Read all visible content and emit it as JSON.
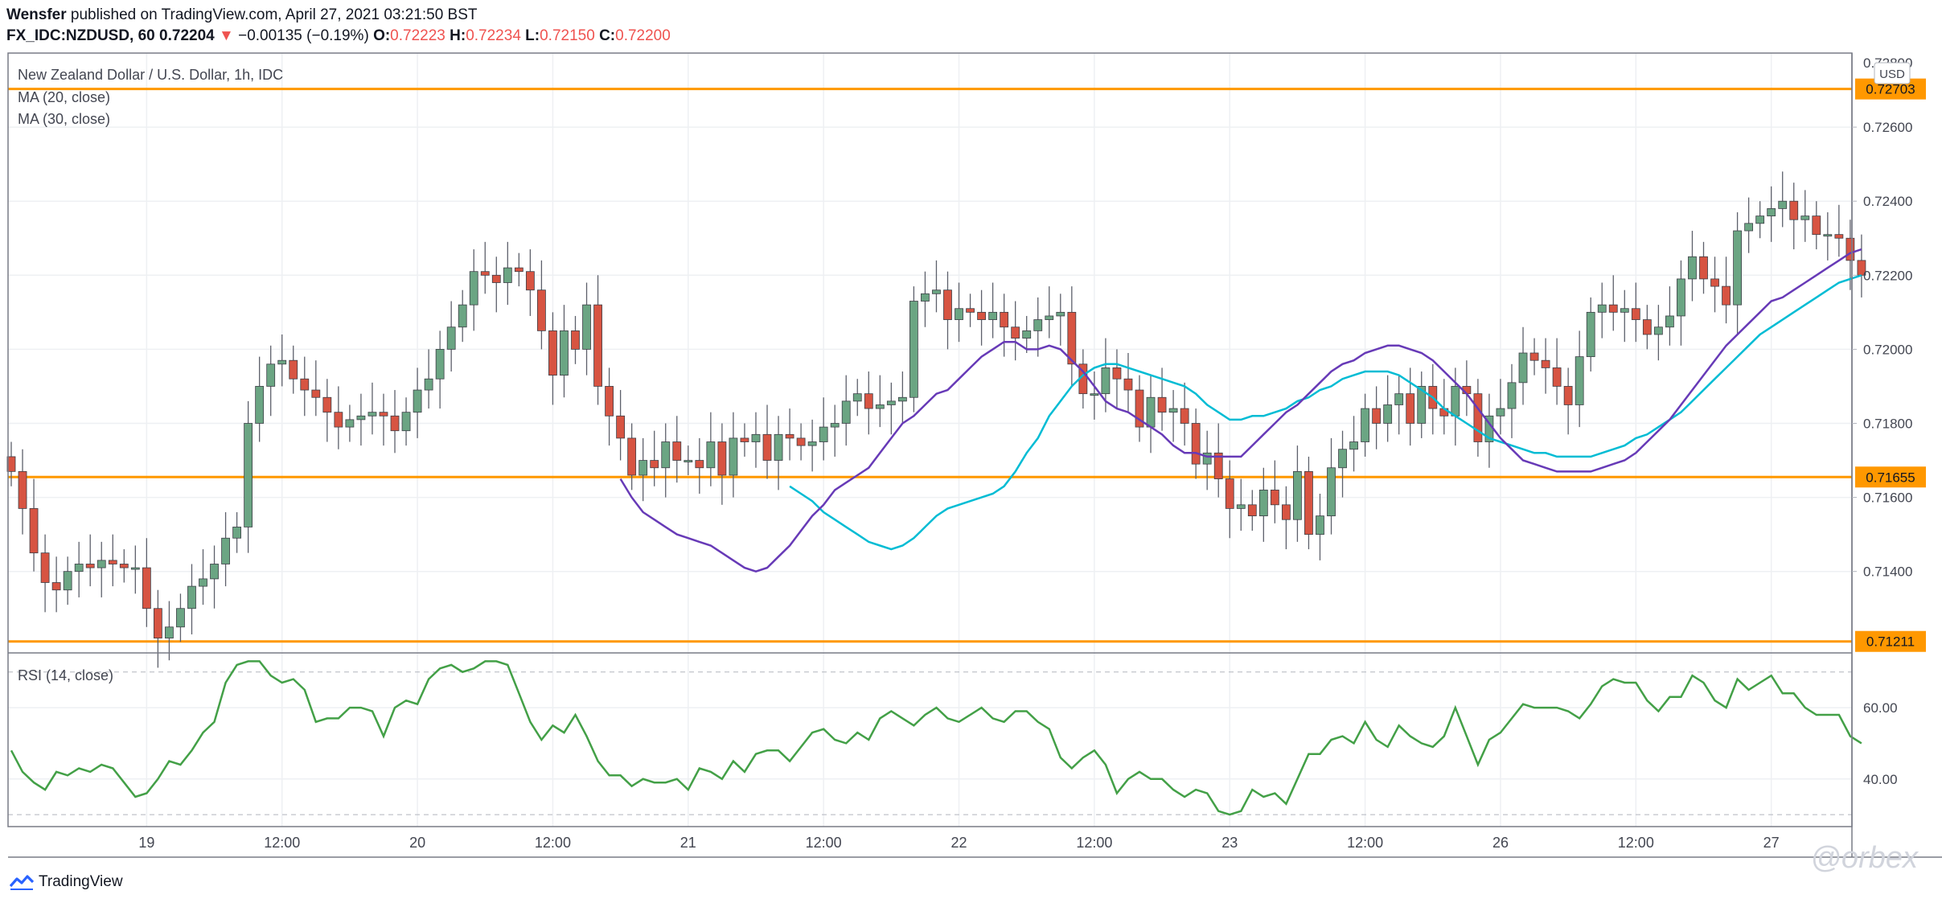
{
  "header": {
    "author": "Wensfer",
    "published_text": "published on TradingView.com, April 27, 2021 03:21:50 BST",
    "symbol": "FX_IDC:NZDUSD, 60",
    "last": "0.72204",
    "change_arrow": "▼",
    "change": "−0.00135 (−0.19%)",
    "o_label": "O:",
    "o_value": "0.72223",
    "h_label": "H:",
    "h_value": "0.72234",
    "l_label": "L:",
    "l_value": "0.72150",
    "c_label": "C:",
    "c_value": "0.72200"
  },
  "branding": {
    "label": "TradingView",
    "watermark": "@orbex"
  },
  "colors": {
    "up": "#6ba583",
    "down": "#d75442",
    "ma20": "#673ab7",
    "ma30": "#00bcd4",
    "level": "#ff9800",
    "rsi": "#43a047",
    "grid": "#eef0f3",
    "axis_text": "#434651"
  },
  "chart_data": [
    {
      "type": "candlestick",
      "title": "New Zealand Dollar / U.S. Dollar, 1h, IDC",
      "currency": "USD",
      "indicators": [
        "MA (20, close)",
        "MA (30, close)"
      ],
      "ylim": [
        0.7118,
        0.728
      ],
      "yticks": [
        0.714,
        0.716,
        0.718,
        0.72,
        0.722,
        0.724,
        0.726
      ],
      "ytick_labels": [
        "0.71400",
        "0.71600",
        "0.71800",
        "0.72000",
        "0.72200",
        "0.72400",
        "0.72600"
      ],
      "top_tick_label": "0.72800",
      "levels": [
        {
          "value": 0.72703,
          "label": "0.72703"
        },
        {
          "value": 0.71655,
          "label": "0.71655"
        },
        {
          "value": 0.71211,
          "label": "0.71211"
        }
      ],
      "x_labels": [
        {
          "index": 12,
          "label": "19"
        },
        {
          "index": 24,
          "label": "12:00"
        },
        {
          "index": 36,
          "label": "20"
        },
        {
          "index": 48,
          "label": "12:00"
        },
        {
          "index": 60,
          "label": "21"
        },
        {
          "index": 72,
          "label": "12:00"
        },
        {
          "index": 84,
          "label": "22"
        },
        {
          "index": 96,
          "label": "12:00"
        },
        {
          "index": 108,
          "label": "23"
        },
        {
          "index": 120,
          "label": "12:00"
        },
        {
          "index": 132,
          "label": "26"
        },
        {
          "index": 144,
          "label": "12:00"
        },
        {
          "index": 156,
          "label": "27"
        }
      ],
      "close": [
        0.7167,
        0.7157,
        0.7145,
        0.7137,
        0.7135,
        0.714,
        0.7142,
        0.7141,
        0.7143,
        0.7142,
        0.7141,
        0.7141,
        0.713,
        0.7122,
        0.7125,
        0.713,
        0.7136,
        0.7138,
        0.7142,
        0.7149,
        0.7152,
        0.718,
        0.719,
        0.7196,
        0.7197,
        0.7192,
        0.7189,
        0.7187,
        0.7183,
        0.7179,
        0.7181,
        0.7182,
        0.7183,
        0.7182,
        0.7178,
        0.7183,
        0.7189,
        0.7192,
        0.72,
        0.7206,
        0.7212,
        0.7221,
        0.722,
        0.7218,
        0.7222,
        0.7221,
        0.7216,
        0.7205,
        0.7193,
        0.7205,
        0.72,
        0.7212,
        0.719,
        0.7182,
        0.7176,
        0.7166,
        0.717,
        0.7168,
        0.7175,
        0.717,
        0.717,
        0.7168,
        0.7175,
        0.7166,
        0.7176,
        0.7175,
        0.7177,
        0.717,
        0.7177,
        0.7176,
        0.7174,
        0.7175,
        0.7179,
        0.718,
        0.7186,
        0.7188,
        0.7184,
        0.7185,
        0.7186,
        0.7187,
        0.7213,
        0.7215,
        0.7216,
        0.7208,
        0.7211,
        0.721,
        0.7208,
        0.721,
        0.7206,
        0.7203,
        0.7205,
        0.7208,
        0.7209,
        0.721,
        0.7196,
        0.7188,
        0.7188,
        0.7195,
        0.7192,
        0.7189,
        0.7179,
        0.7187,
        0.7183,
        0.7184,
        0.718,
        0.7169,
        0.7172,
        0.7165,
        0.7157,
        0.7158,
        0.7155,
        0.7162,
        0.7158,
        0.7154,
        0.7167,
        0.715,
        0.7155,
        0.7168,
        0.7173,
        0.7175,
        0.7184,
        0.718,
        0.7185,
        0.7188,
        0.718,
        0.719,
        0.7184,
        0.7182,
        0.719,
        0.7188,
        0.7175,
        0.7182,
        0.7184,
        0.7191,
        0.7199,
        0.7197,
        0.7195,
        0.719,
        0.7185,
        0.7198,
        0.721,
        0.7212,
        0.721,
        0.7211,
        0.7208,
        0.7204,
        0.7206,
        0.7209,
        0.7219,
        0.7225,
        0.7219,
        0.7217,
        0.7212,
        0.7232,
        0.7234,
        0.7236,
        0.7238,
        0.724,
        0.7235,
        0.7236,
        0.7231,
        0.7231,
        0.723,
        0.7224,
        0.722
      ],
      "ma20": [
        0.7165,
        0.716,
        0.7156,
        0.7154,
        0.7152,
        0.715,
        0.7149,
        0.7148,
        0.7147,
        0.7145,
        0.7143,
        0.7141,
        0.714,
        0.7141,
        0.7144,
        0.7147,
        0.7151,
        0.7155,
        0.7158,
        0.7162,
        0.7164,
        0.7166,
        0.7168,
        0.7172,
        0.7176,
        0.718,
        0.7182,
        0.7185,
        0.7188,
        0.7189,
        0.7192,
        0.7195,
        0.7198,
        0.72,
        0.7202,
        0.7202,
        0.72,
        0.72,
        0.7201,
        0.72,
        0.7197,
        0.7194,
        0.719,
        0.7186,
        0.7184,
        0.7183,
        0.7181,
        0.7179,
        0.7177,
        0.7174,
        0.7172,
        0.7172,
        0.7171,
        0.7171,
        0.7171,
        0.7171,
        0.7174,
        0.7177,
        0.718,
        0.7183,
        0.7185,
        0.7188,
        0.7191,
        0.7194,
        0.7196,
        0.7197,
        0.7199,
        0.72,
        0.7201,
        0.7201,
        0.72,
        0.7199,
        0.7197,
        0.7194,
        0.7191,
        0.7188,
        0.7184,
        0.718,
        0.7176,
        0.7173,
        0.717,
        0.7169,
        0.7168,
        0.7167,
        0.7167,
        0.7167,
        0.7167,
        0.7168,
        0.7169,
        0.717,
        0.7172,
        0.7175,
        0.7178,
        0.7181,
        0.7185,
        0.7189,
        0.7193,
        0.7197,
        0.7201,
        0.7204,
        0.7207,
        0.721,
        0.7213,
        0.7214,
        0.7216,
        0.7218,
        0.722,
        0.7222,
        0.7224,
        0.7226,
        0.7227
      ],
      "ma30": [
        0.7163,
        0.7161,
        0.7159,
        0.7156,
        0.7154,
        0.7152,
        0.715,
        0.7148,
        0.7147,
        0.7146,
        0.7147,
        0.7149,
        0.7152,
        0.7155,
        0.7157,
        0.7158,
        0.7159,
        0.716,
        0.7161,
        0.7163,
        0.7167,
        0.7172,
        0.7176,
        0.7182,
        0.7186,
        0.719,
        0.7193,
        0.7195,
        0.7196,
        0.7196,
        0.7195,
        0.7194,
        0.7193,
        0.7192,
        0.7191,
        0.719,
        0.7188,
        0.7185,
        0.7183,
        0.7181,
        0.7181,
        0.7182,
        0.7182,
        0.7183,
        0.7184,
        0.7186,
        0.7187,
        0.7189,
        0.719,
        0.7192,
        0.7193,
        0.7194,
        0.7194,
        0.7194,
        0.7193,
        0.7191,
        0.7189,
        0.7187,
        0.7184,
        0.7182,
        0.718,
        0.7178,
        0.7176,
        0.7175,
        0.7174,
        0.7173,
        0.7172,
        0.7172,
        0.7171,
        0.7171,
        0.7171,
        0.7171,
        0.7172,
        0.7173,
        0.7174,
        0.7176,
        0.7177,
        0.7179,
        0.7181,
        0.7183,
        0.7186,
        0.7189,
        0.7192,
        0.7195,
        0.7198,
        0.7201,
        0.7204,
        0.7206,
        0.7208,
        0.721,
        0.7212,
        0.7214,
        0.7216,
        0.7218,
        0.7219,
        0.722
      ]
    },
    {
      "type": "line",
      "title": "RSI (14, close)",
      "ylim": [
        28,
        74
      ],
      "yticks": [
        40,
        60
      ],
      "ytick_labels": [
        "40.00",
        "60.00"
      ],
      "bands": [
        70,
        30
      ],
      "values": [
        48,
        42,
        39,
        37,
        42,
        41,
        43,
        42,
        44,
        43,
        39,
        35,
        36,
        40,
        45,
        44,
        48,
        53,
        56,
        67,
        72,
        73,
        73,
        69,
        67,
        68,
        65,
        56,
        57,
        57,
        60,
        60,
        59,
        52,
        60,
        62,
        61,
        68,
        71,
        72,
        70,
        71,
        73,
        73,
        72,
        64,
        56,
        51,
        55,
        53,
        58,
        52,
        45,
        41,
        41,
        38,
        40,
        39,
        39,
        40,
        37,
        43,
        42,
        40,
        45,
        42,
        47,
        48,
        48,
        45,
        49,
        53,
        54,
        51,
        50,
        53,
        51,
        57,
        59,
        57,
        55,
        58,
        60,
        57,
        56,
        58,
        60,
        57,
        56,
        59,
        59,
        56,
        54,
        46,
        43,
        46,
        48,
        44,
        36,
        40,
        42,
        40,
        40,
        37,
        35,
        37,
        36,
        31,
        30,
        31,
        37,
        35,
        36,
        33,
        40,
        47,
        47,
        51,
        52,
        50,
        56,
        51,
        49,
        55,
        52,
        50,
        49,
        52,
        60,
        52,
        44,
        51,
        53,
        57,
        61,
        60,
        60,
        60,
        59,
        57,
        61,
        66,
        68,
        67,
        67,
        62,
        59,
        63,
        63,
        69,
        67,
        62,
        60,
        68,
        65,
        67,
        69,
        64,
        64,
        60,
        58,
        58,
        58,
        52,
        50
      ]
    }
  ]
}
